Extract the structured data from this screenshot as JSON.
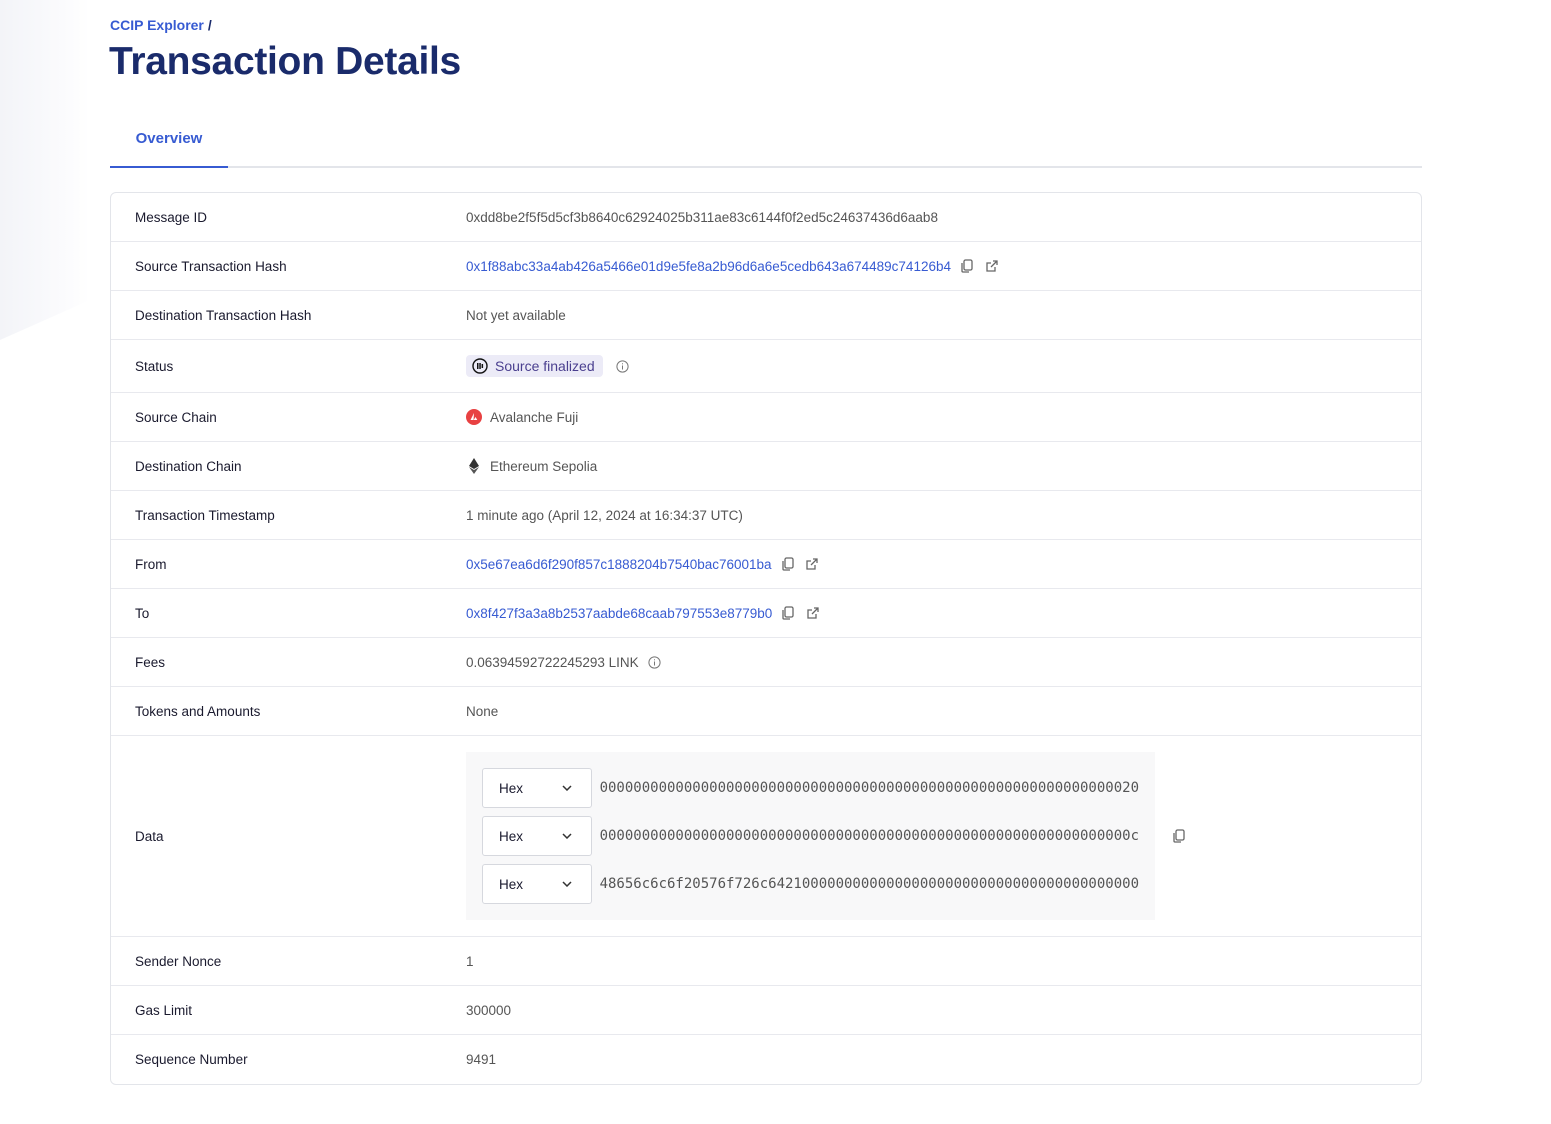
{
  "breadcrumb": {
    "root": "CCIP Explorer",
    "sep": "/"
  },
  "title": "Transaction Details",
  "tabs": [
    {
      "label": "Overview"
    }
  ],
  "rows": {
    "message_id": {
      "label": "Message ID",
      "value": "0xdd8be2f5f5d5cf3b8640c62924025b311ae83c6144f0f2ed5c24637436d6aab8"
    },
    "source_tx": {
      "label": "Source Transaction Hash",
      "value": "0x1f88abc33a4ab426a5466e01d9e5fe8a2b96d6a6e5cedb643a674489c74126b4"
    },
    "dest_tx": {
      "label": "Destination Transaction Hash",
      "value": "Not yet available"
    },
    "status": {
      "label": "Status",
      "value": "Source finalized"
    },
    "source_chain": {
      "label": "Source Chain",
      "value": "Avalanche Fuji"
    },
    "dest_chain": {
      "label": "Destination Chain",
      "value": "Ethereum Sepolia"
    },
    "timestamp": {
      "label": "Transaction Timestamp",
      "value": "1 minute ago (April 12, 2024 at 16:34:37 UTC)"
    },
    "from": {
      "label": "From",
      "value": "0x5e67ea6d6f290f857c1888204b7540bac76001ba"
    },
    "to": {
      "label": "To",
      "value": "0x8f427f3a3a8b2537aabde68caab797553e8779b0"
    },
    "fees": {
      "label": "Fees",
      "value": "0.06394592722245293 LINK"
    },
    "tokens": {
      "label": "Tokens and Amounts",
      "value": "None"
    },
    "data": {
      "label": "Data",
      "lines": [
        {
          "format": "Hex",
          "value": "0000000000000000000000000000000000000000000000000000000000000020"
        },
        {
          "format": "Hex",
          "value": "000000000000000000000000000000000000000000000000000000000000000c"
        },
        {
          "format": "Hex",
          "value": "48656c6c6f20576f726c64210000000000000000000000000000000000000000"
        }
      ]
    },
    "nonce": {
      "label": "Sender Nonce",
      "value": "1"
    },
    "gas": {
      "label": "Gas Limit",
      "value": "300000"
    },
    "seq": {
      "label": "Sequence Number",
      "value": "9491"
    }
  },
  "colors": {
    "accent": "#375bd2",
    "title": "#1a2b6b",
    "badge_bg": "#ecebf7",
    "avalanche": "#e84142"
  }
}
